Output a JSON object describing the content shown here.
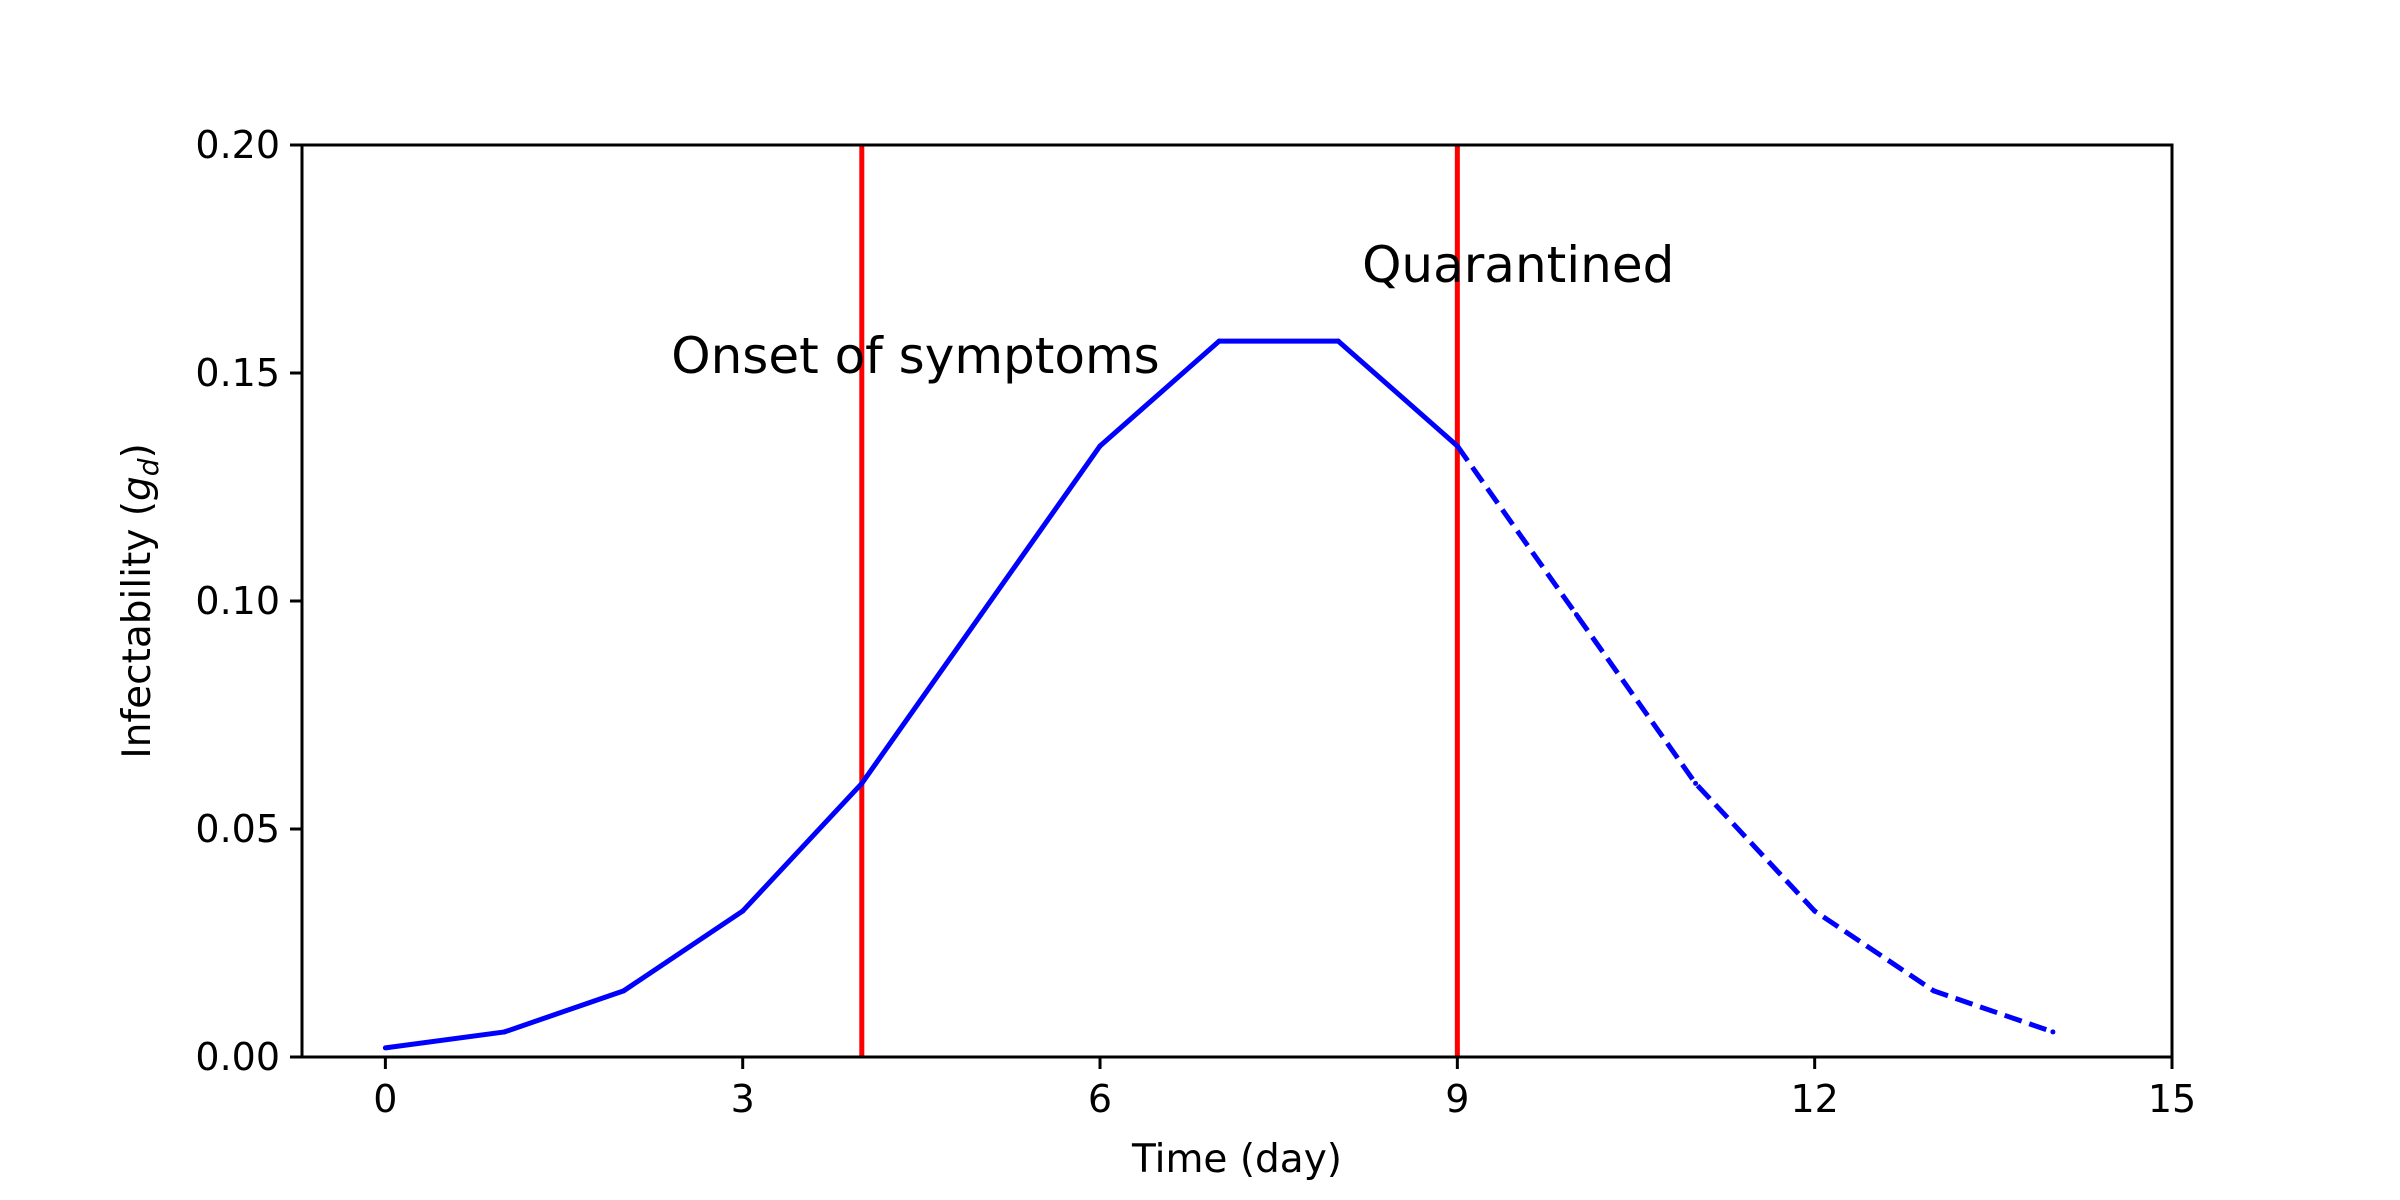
{
  "chart_data": {
    "type": "line",
    "xlabel": "Time (day)",
    "ylabel": "Infectability (",
    "ylabel_symbol": "g",
    "ylabel_subscript": "d",
    "ylabel_close": ")",
    "xlim": [
      -0.7,
      15
    ],
    "ylim": [
      0,
      0.2
    ],
    "xticks": [
      0,
      3,
      6,
      9,
      12,
      15
    ],
    "xtick_labels": [
      "0",
      "3",
      "6",
      "9",
      "12",
      "15"
    ],
    "yticks": [
      0,
      0.05,
      0.1,
      0.15,
      0.2
    ],
    "ytick_labels": [
      "0.00",
      "0.05",
      "0.10",
      "0.15",
      "0.20"
    ],
    "grid": false,
    "series": [
      {
        "style": "solid",
        "color": "#0000ff",
        "x": [
          0,
          1,
          2,
          3,
          4,
          5,
          6,
          7,
          8,
          9
        ],
        "y": [
          0.002,
          0.0055,
          0.0145,
          0.032,
          0.06,
          0.097,
          0.134,
          0.157,
          0.157,
          0.134
        ]
      },
      {
        "style": "dashed",
        "color": "#0000ff",
        "x": [
          9,
          10,
          11,
          12,
          13,
          14
        ],
        "y": [
          0.134,
          0.097,
          0.06,
          0.032,
          0.0145,
          0.0055
        ]
      }
    ],
    "vlines": [
      {
        "x": 4,
        "color": "#ff0000"
      },
      {
        "x": 9,
        "color": "#ff0000"
      }
    ],
    "annotations": [
      {
        "text": "Onset of symptoms",
        "x": 2.4,
        "y": 0.15
      },
      {
        "text": "Quarantined",
        "x": 8.2,
        "y": 0.17
      }
    ]
  }
}
